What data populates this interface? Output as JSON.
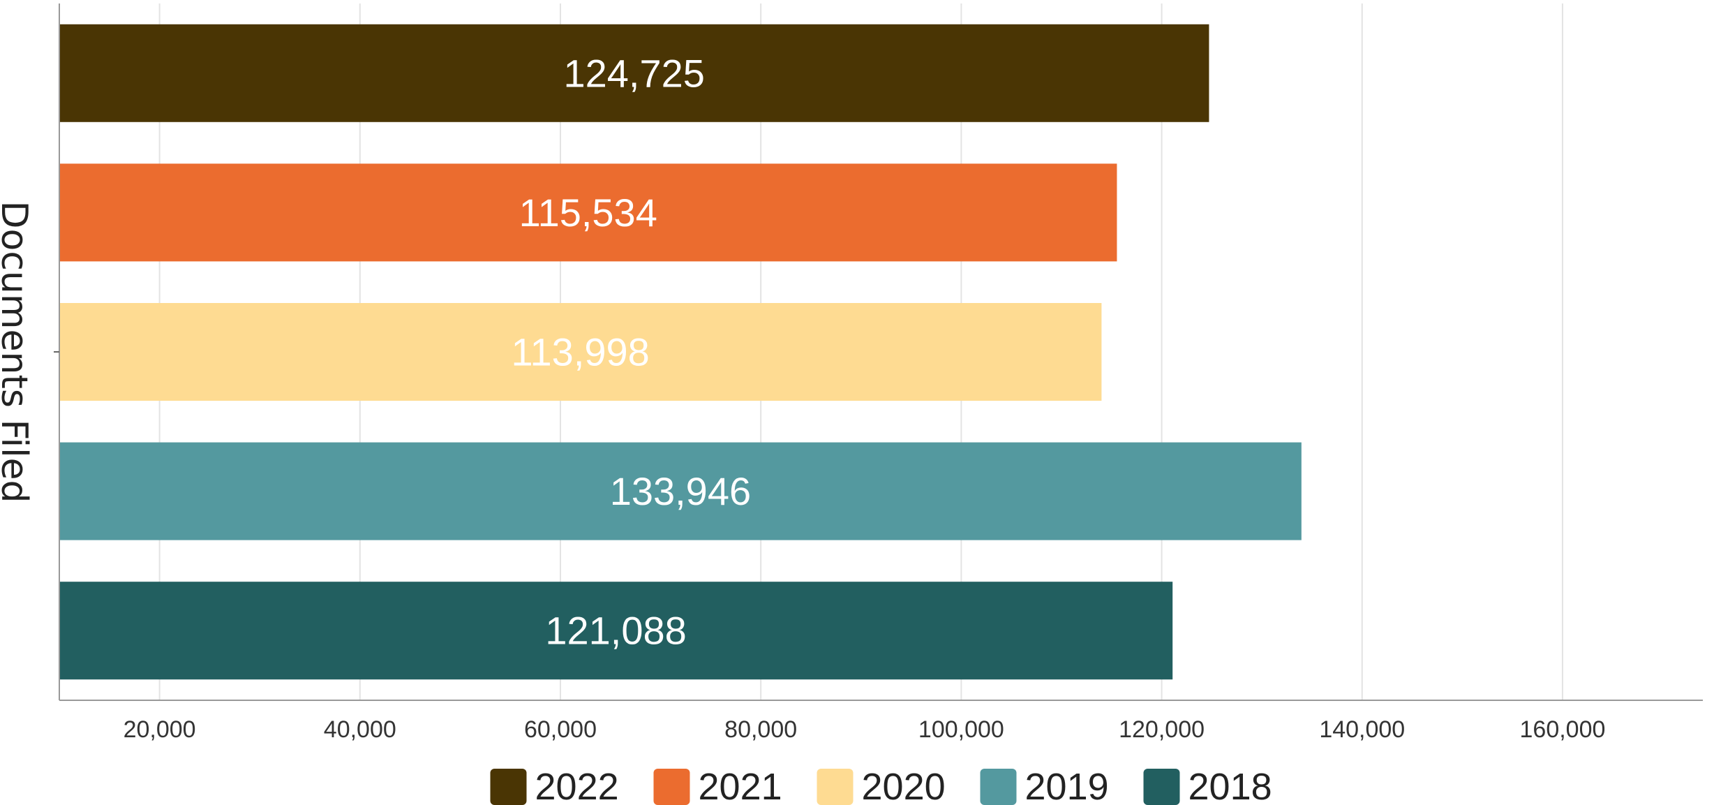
{
  "chart_data": {
    "type": "bar",
    "orientation": "horizontal",
    "title": "",
    "xlabel": "",
    "ylabel": "Documents Filed",
    "xlim": [
      10000,
      174000
    ],
    "xticks": [
      20000,
      40000,
      60000,
      80000,
      100000,
      120000,
      140000,
      160000
    ],
    "xtick_labels": [
      "20,000",
      "40,000",
      "60,000",
      "80,000",
      "100,000",
      "120,000",
      "140,000",
      "160,000"
    ],
    "grid": true,
    "legend_position": "bottom",
    "series": [
      {
        "name": "2022",
        "value": 124725,
        "label": "124,725",
        "color": "#4a3504"
      },
      {
        "name": "2021",
        "value": 115534,
        "label": "115,534",
        "color": "#eb6c2f"
      },
      {
        "name": "2020",
        "value": 113998,
        "label": "113,998",
        "color": "#fedb92"
      },
      {
        "name": "2019",
        "value": 133946,
        "label": "133,946",
        "color": "#54999f"
      },
      {
        "name": "2018",
        "value": 121088,
        "label": "121,088",
        "color": "#225f60"
      }
    ]
  }
}
